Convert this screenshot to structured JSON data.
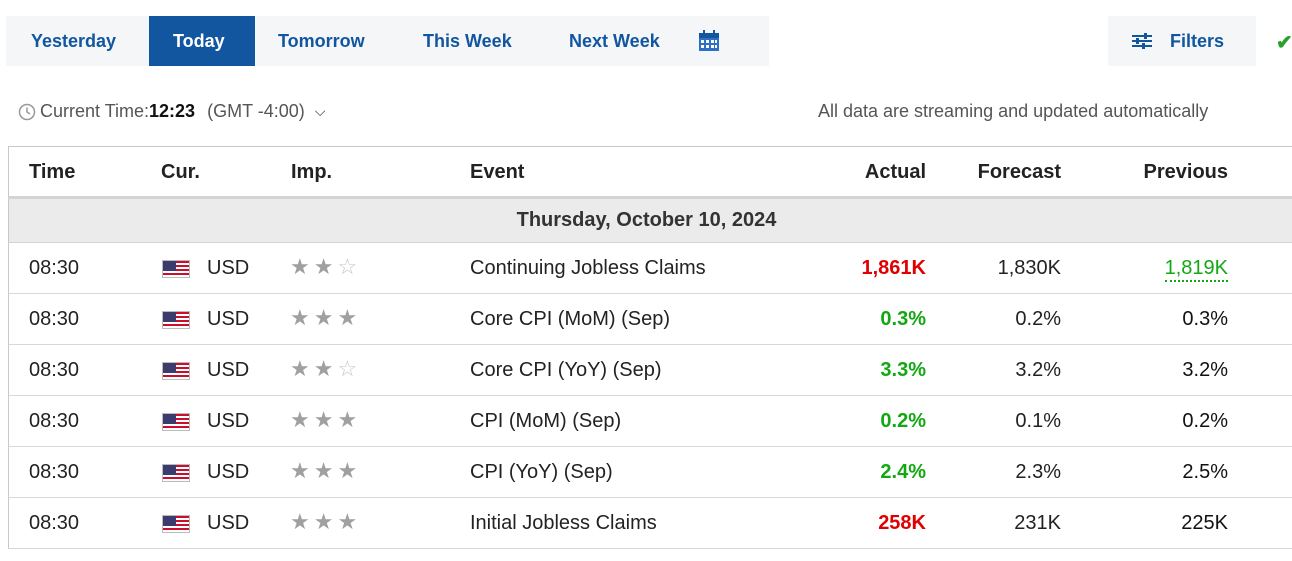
{
  "tabs": {
    "yesterday": "Yesterday",
    "today": "Today",
    "tomorrow": "Tomorrow",
    "this_week": "This Week",
    "next_week": "Next Week",
    "active": "Today"
  },
  "filters_label": "Filters",
  "time_bar": {
    "label": "Current Time:",
    "time": "12:23",
    "timezone": "(GMT -4:00)"
  },
  "streaming_note": "All data are streaming and updated automatically",
  "table": {
    "headers": {
      "time": "Time",
      "cur": "Cur.",
      "imp": "Imp.",
      "event": "Event",
      "actual": "Actual",
      "forecast": "Forecast",
      "previous": "Previous"
    },
    "day": "Thursday, October 10, 2024",
    "rows": [
      {
        "time": "08:30",
        "currency": "USD",
        "importance": 2,
        "event": "Continuing Jobless Claims",
        "actual": "1,861K",
        "forecast": "1,830K",
        "previous": "1,819K"
      },
      {
        "time": "08:30",
        "currency": "USD",
        "importance": 3,
        "event": "Core CPI (MoM) (Sep)",
        "actual": "0.3%",
        "forecast": "0.2%",
        "previous": "0.3%"
      },
      {
        "time": "08:30",
        "currency": "USD",
        "importance": 2,
        "event": "Core CPI (YoY) (Sep)",
        "actual": "3.3%",
        "forecast": "3.2%",
        "previous": "3.2%"
      },
      {
        "time": "08:30",
        "currency": "USD",
        "importance": 3,
        "event": "CPI (MoM) (Sep)",
        "actual": "0.2%",
        "forecast": "0.1%",
        "previous": "0.2%"
      },
      {
        "time": "08:30",
        "currency": "USD",
        "importance": 3,
        "event": "CPI (YoY) (Sep)",
        "actual": "2.4%",
        "forecast": "2.3%",
        "previous": "2.5%"
      },
      {
        "time": "08:30",
        "currency": "USD",
        "importance": 3,
        "event": "Initial Jobless Claims",
        "actual": "258K",
        "forecast": "231K",
        "previous": "225K"
      }
    ]
  },
  "colors": {
    "accent": "#1256a0",
    "actual_worse": "#e10000",
    "actual_better": "#12a812",
    "revised": "#12a812"
  }
}
